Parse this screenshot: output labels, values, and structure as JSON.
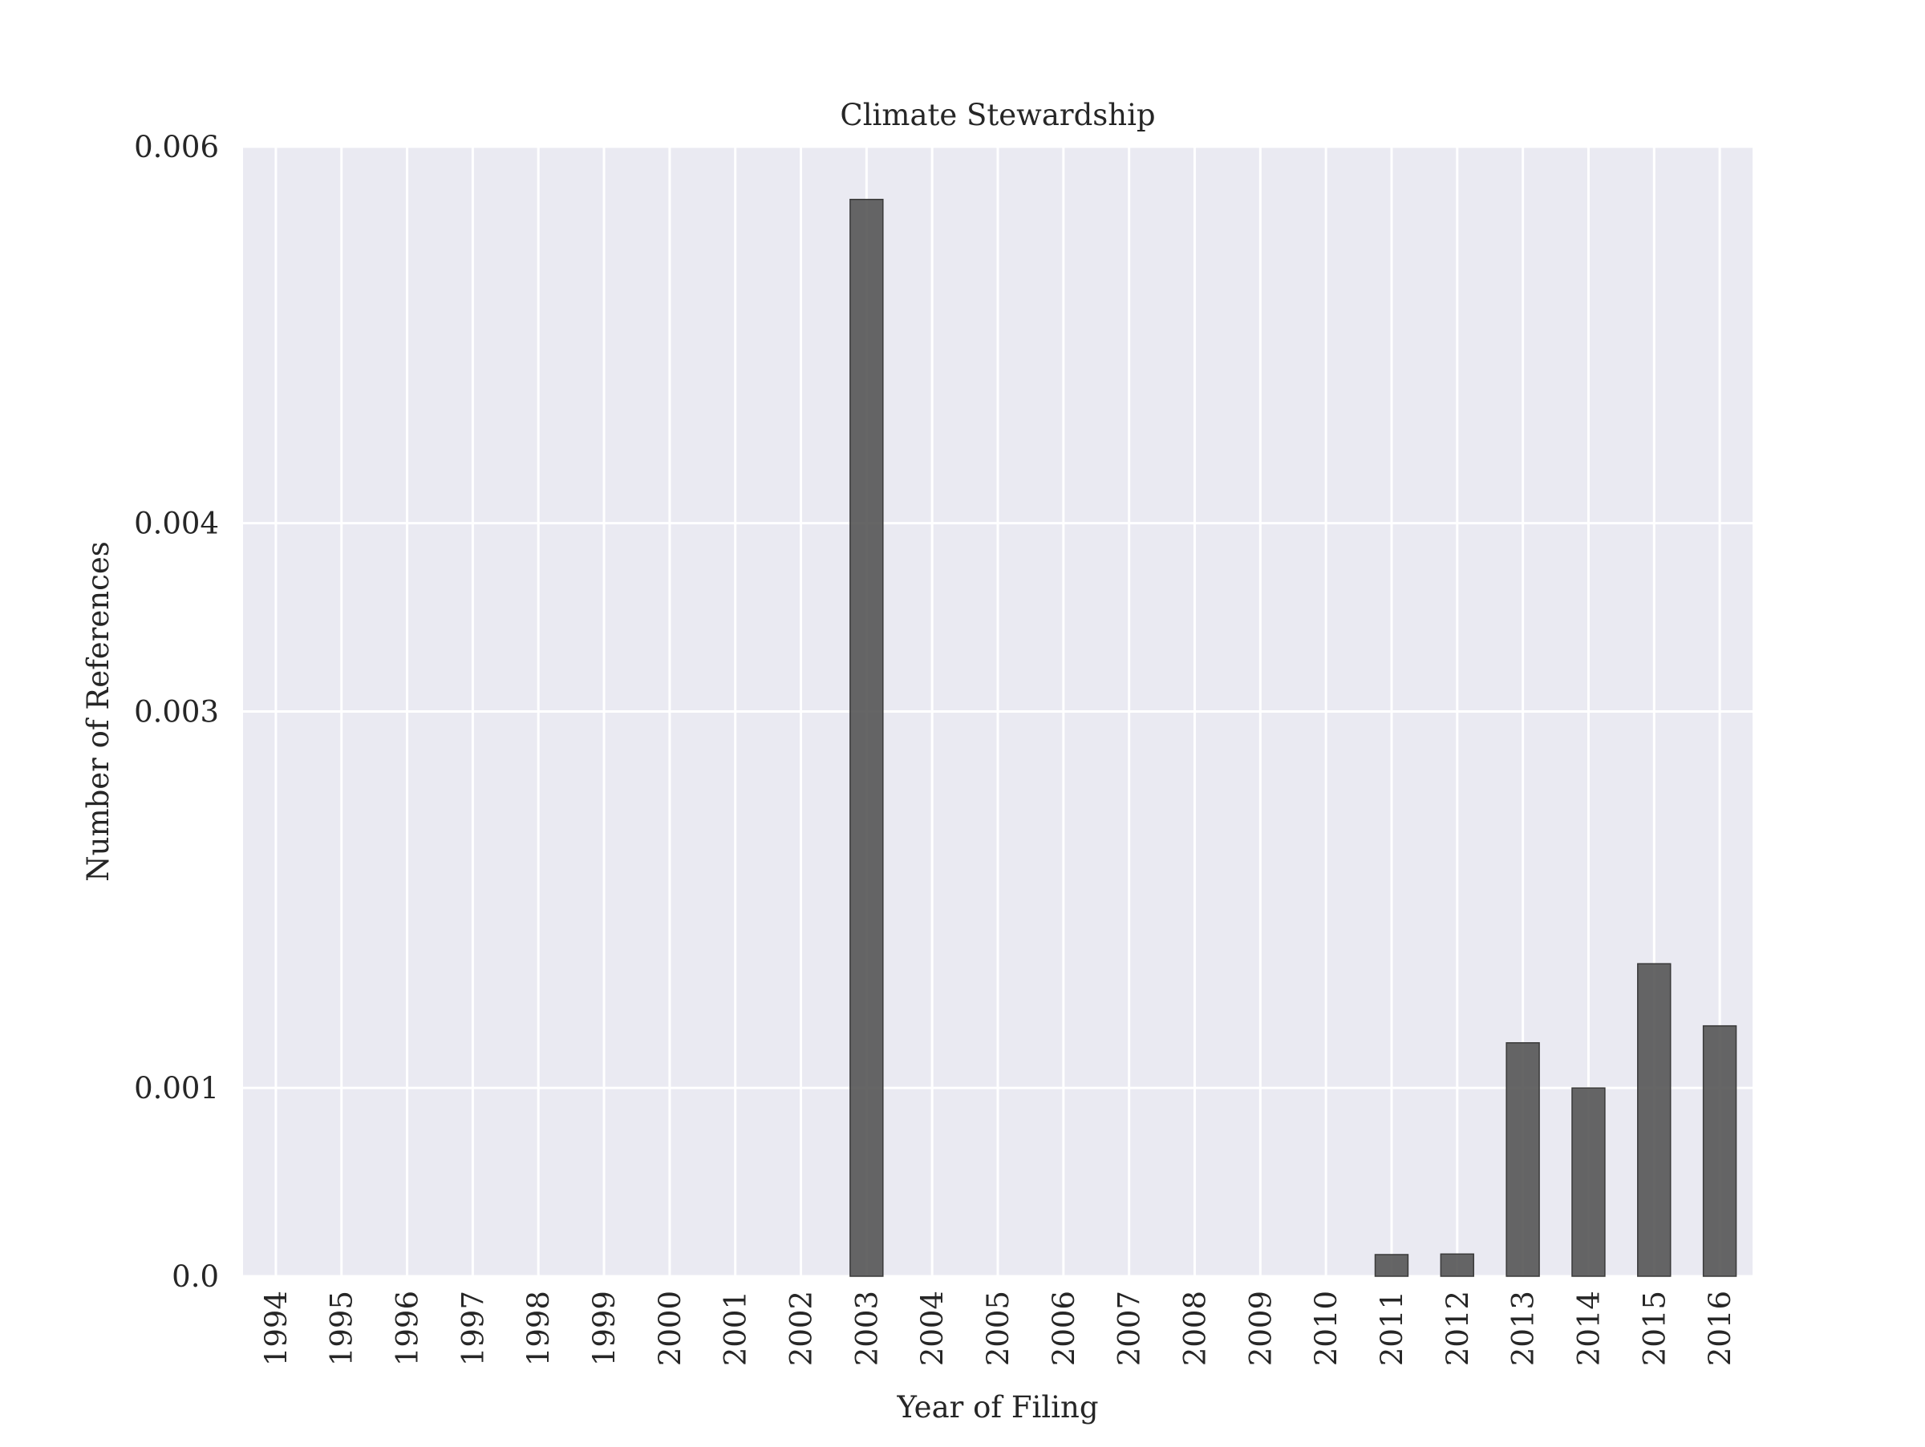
{
  "chart_data": {
    "type": "bar",
    "title": "Climate Stewardship",
    "xlabel": "Year of Filing",
    "ylabel": "Number of References",
    "categories": [
      "1994",
      "1995",
      "1996",
      "1997",
      "1998",
      "1999",
      "2000",
      "2001",
      "2002",
      "2003",
      "2004",
      "2005",
      "2006",
      "2007",
      "2008",
      "2009",
      "2010",
      "2011",
      "2012",
      "2013",
      "2014",
      "2015",
      "2016"
    ],
    "values": [
      0,
      0,
      0,
      0,
      0,
      0,
      0,
      0,
      0,
      0.00572,
      0,
      0,
      0,
      0,
      0,
      0,
      0,
      0.000115,
      0.000118,
      0.00124,
      0.001,
      0.00166,
      0.00133
    ],
    "ylim": [
      0,
      0.006
    ],
    "yticks": [
      {
        "value": 0,
        "label": "0.0"
      },
      {
        "value": 0.001,
        "label": "0.001"
      },
      {
        "value": 0.003,
        "label": "0.003"
      },
      {
        "value": 0.004,
        "label": "0.004"
      },
      {
        "value": 0.006,
        "label": "0.006"
      }
    ],
    "grid": true,
    "colors": {
      "bar": "#555555",
      "bar_edge": "#3a3a3a",
      "plot_background": "#eaeaf2",
      "grid": "#ffffff"
    }
  }
}
